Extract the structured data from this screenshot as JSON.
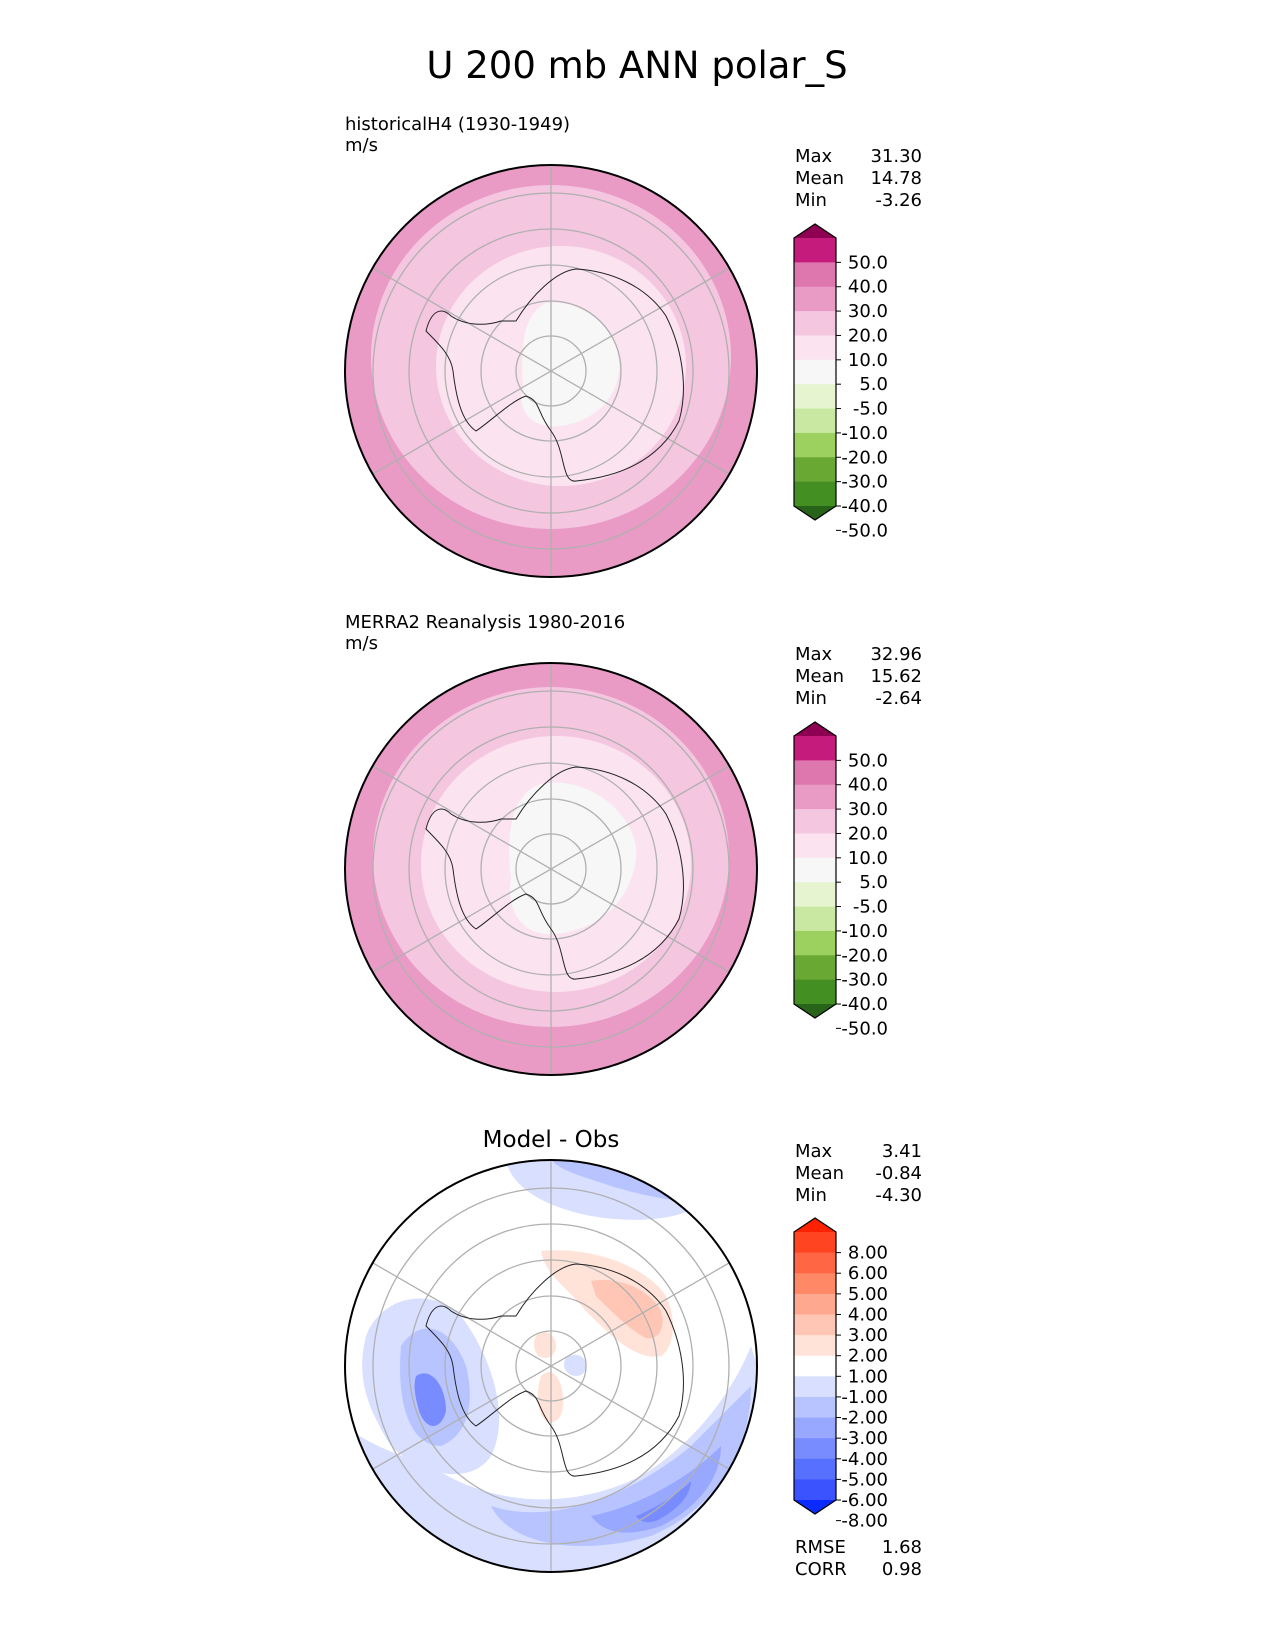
{
  "figure": {
    "title": "U 200 mb ANN polar_S"
  },
  "stats_labels": {
    "max": "Max",
    "mean": "Mean",
    "min": "Min",
    "rmse": "RMSE",
    "corr": "CORR"
  },
  "panels": [
    {
      "title_line1": "historicalH4 (1930-1949)",
      "title_line2": "m/s",
      "center_title": "",
      "stats": {
        "max": "31.30",
        "mean": "14.78",
        "min": "-3.26"
      },
      "colorbar": {
        "ticks": [
          "50.0",
          "40.0",
          "30.0",
          "20.0",
          "10.0",
          "5.0",
          "-5.0",
          "-10.0",
          "-20.0",
          "-30.0",
          "-40.0",
          "-50.0"
        ],
        "colors": [
          "#8e0152",
          "#c51b7d",
          "#de77ae",
          "#e99bc6",
          "#f4c6e0",
          "#fbe4f0",
          "#f7f7f7",
          "#e6f5d0",
          "#c9e8a2",
          "#9cd05f",
          "#6aa834",
          "#448f22",
          "#276419"
        ]
      }
    },
    {
      "title_line1": "MERRA2 Reanalysis 1980-2016",
      "title_line2": "m/s",
      "center_title": "",
      "stats": {
        "max": "32.96",
        "mean": "15.62",
        "min": "-2.64"
      },
      "colorbar": {
        "ticks": [
          "50.0",
          "40.0",
          "30.0",
          "20.0",
          "10.0",
          "5.0",
          "-5.0",
          "-10.0",
          "-20.0",
          "-30.0",
          "-40.0",
          "-50.0"
        ],
        "colors": [
          "#8e0152",
          "#c51b7d",
          "#de77ae",
          "#e99bc6",
          "#f4c6e0",
          "#fbe4f0",
          "#f7f7f7",
          "#e6f5d0",
          "#c9e8a2",
          "#9cd05f",
          "#6aa834",
          "#448f22",
          "#276419"
        ]
      }
    },
    {
      "title_line1": "",
      "title_line2": "",
      "center_title": "Model - Obs",
      "stats": {
        "max": "3.41",
        "mean": "-0.84",
        "min": "-4.30"
      },
      "metrics": {
        "rmse": "1.68",
        "corr": "0.98"
      },
      "colorbar": {
        "ticks": [
          "8.00",
          "6.00",
          "5.00",
          "4.00",
          "3.00",
          "2.00",
          "1.00",
          "-1.00",
          "-2.00",
          "-3.00",
          "-4.00",
          "-5.00",
          "-6.00",
          "-8.00"
        ],
        "colors": [
          "#ff2200",
          "#ff4422",
          "#ff6644",
          "#ff8866",
          "#ffa890",
          "#ffc6b6",
          "#ffe2d8",
          "#ffffff",
          "#d8dfff",
          "#b8c4ff",
          "#98a8ff",
          "#788cff",
          "#5870ff",
          "#3a52ff",
          "#0a2aff"
        ]
      }
    }
  ],
  "chart_data": [
    {
      "type": "heatmap",
      "projection": "south-polar-stereographic",
      "units": "m/s",
      "color_levels": [
        -50,
        -40,
        -30,
        -20,
        -10,
        -5,
        5,
        10,
        20,
        30,
        40,
        50
      ]
    },
    {
      "type": "heatmap",
      "projection": "south-polar-stereographic",
      "units": "m/s",
      "color_levels": [
        -50,
        -40,
        -30,
        -20,
        -10,
        -5,
        5,
        10,
        20,
        30,
        40,
        50
      ]
    },
    {
      "type": "heatmap",
      "projection": "south-polar-stereographic",
      "units": "m/s",
      "color_levels": [
        -8,
        -6,
        -5,
        -4,
        -3,
        -2,
        -1,
        1,
        2,
        3,
        4,
        5,
        6,
        8
      ]
    }
  ]
}
